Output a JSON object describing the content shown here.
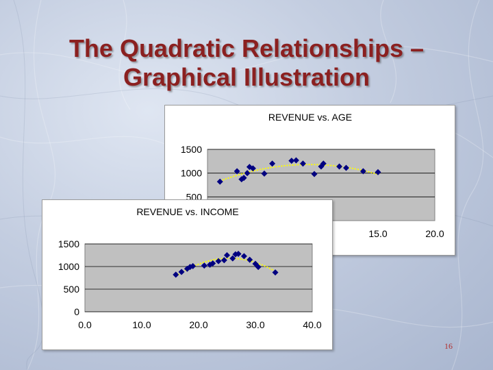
{
  "slide": {
    "title_line1": "The Quadratic Relationships –",
    "title_line2": "Graphical Illustration",
    "page_number": "16"
  },
  "colors": {
    "title": "#8b2020",
    "plot_area": "#c0c0c0",
    "marker": "#000080",
    "trendline": "#ffff00"
  },
  "chart_data": [
    {
      "type": "scatter",
      "title": "REVENUE vs. AGE",
      "xlabel": "",
      "ylabel": "",
      "x_ticks_visible": [
        "15.0",
        "20.0"
      ],
      "y_ticks": [
        "500",
        "1000",
        "1500"
      ],
      "xlim": [
        0,
        20
      ],
      "ylim": [
        0,
        1500
      ],
      "grid": "horizontal",
      "marker": "diamond",
      "trendline": "quadratic, dotted",
      "x": [
        1.1,
        2.6,
        3.0,
        3.2,
        3.5,
        3.7,
        4.0,
        5.0,
        5.7,
        7.4,
        7.8,
        8.4,
        9.4,
        10.0,
        10.2,
        11.6,
        12.2,
        13.7,
        15.0
      ],
      "y": [
        820,
        1040,
        870,
        900,
        1000,
        1130,
        1100,
        990,
        1200,
        1260,
        1270,
        1200,
        980,
        1140,
        1200,
        1140,
        1110,
        1040,
        1020
      ]
    },
    {
      "type": "scatter",
      "title": "REVENUE vs. INCOME",
      "xlabel": "",
      "ylabel": "",
      "x_ticks": [
        "0.0",
        "10.0",
        "20.0",
        "30.0",
        "40.0"
      ],
      "y_ticks": [
        "0",
        "500",
        "1000",
        "1500"
      ],
      "xlim": [
        0,
        40
      ],
      "ylim": [
        0,
        1500
      ],
      "grid": "horizontal",
      "marker": "diamond",
      "trendline": "quadratic, dotted",
      "x": [
        16.0,
        17.0,
        18.0,
        18.5,
        19.0,
        21.0,
        22.0,
        22.5,
        23.5,
        24.5,
        25.0,
        26.0,
        26.5,
        27.0,
        28.0,
        29.0,
        30.0,
        30.5,
        33.5
      ],
      "y": [
        820,
        880,
        950,
        990,
        1010,
        1020,
        1040,
        1070,
        1120,
        1140,
        1250,
        1180,
        1270,
        1280,
        1230,
        1150,
        1060,
        990,
        870
      ]
    }
  ]
}
